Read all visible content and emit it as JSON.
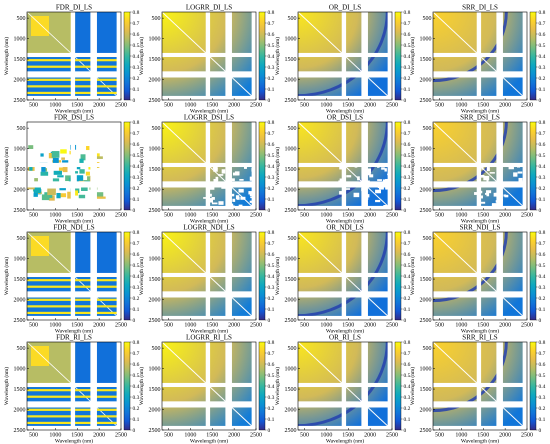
{
  "figure": {
    "rows": [
      {
        "method": "DI",
        "titles": [
          "FDR_DI_LS",
          "LOGRR_DI_LS",
          "OR_DI_LS",
          "SRR_DI_LS"
        ]
      },
      {
        "method": "DSI",
        "titles": [
          "FDR_DSI_LS",
          "LOGRR_DSI_LS",
          "OR_DSI_LS",
          "SRR_DSI_LS"
        ]
      },
      {
        "method": "NDI",
        "titles": [
          "FDR_NDI_LS",
          "LOGRR_NDI_LS",
          "OR_NDI_LS",
          "SRR_NDI_LS"
        ]
      },
      {
        "method": "RI",
        "titles": [
          "FDR_RI_LS",
          "LOGRR_RI_LS",
          "OR_RI_LS",
          "SRR_RI_LS"
        ]
      }
    ],
    "xlabel": "Wavelength (nm)",
    "ylabel": "Wavelength (nm)"
  },
  "chart_data": {
    "type": "heatmap",
    "layout": "4x4 grid",
    "x_range_nm": [
      350,
      2500
    ],
    "y_range_nm": [
      350,
      2500
    ],
    "y_axis_inverted": true,
    "x_ticks": [
      500,
      1000,
      1500,
      2000,
      2500
    ],
    "y_ticks": [
      500,
      1000,
      1500,
      2000,
      2500
    ],
    "colorbar": {
      "colormap": "viridis-like (blue to yellow)",
      "range": [
        0,
        0.8
      ],
      "ticks": [
        "0",
        "0.1",
        "0.2",
        "0.3",
        "0.4",
        "0.5",
        "0.6",
        "0.7",
        "0.8"
      ]
    },
    "masked_bands_nm": [
      [
        1350,
        1450
      ],
      [
        1800,
        1950
      ],
      [
        2400,
        2500
      ]
    ],
    "panels": [
      {
        "row": "DI",
        "metric": "FDR",
        "title": "FDR_DI_LS"
      },
      {
        "row": "DI",
        "metric": "LOGRR",
        "title": "LOGRR_DI_LS"
      },
      {
        "row": "DI",
        "metric": "OR",
        "title": "OR_DI_LS"
      },
      {
        "row": "DI",
        "metric": "SRR",
        "title": "SRR_DI_LS"
      },
      {
        "row": "DSI",
        "metric": "FDR",
        "title": "FDR_DSI_LS"
      },
      {
        "row": "DSI",
        "metric": "LOGRR",
        "title": "LOGRR_DSI_LS"
      },
      {
        "row": "DSI",
        "metric": "OR",
        "title": "OR_DSI_LS"
      },
      {
        "row": "DSI",
        "metric": "SRR",
        "title": "SRR_DSI_LS"
      },
      {
        "row": "NDI",
        "metric": "FDR",
        "title": "FDR_NDI_LS"
      },
      {
        "row": "NDI",
        "metric": "LOGRR",
        "title": "LOGRR_NDI_LS"
      },
      {
        "row": "NDI",
        "metric": "OR",
        "title": "OR_NDI_LS"
      },
      {
        "row": "NDI",
        "metric": "SRR",
        "title": "SRR_NDI_LS"
      },
      {
        "row": "RI",
        "metric": "FDR",
        "title": "FDR_RI_LS"
      },
      {
        "row": "RI",
        "metric": "LOGRR",
        "title": "LOGRR_RI_LS"
      },
      {
        "row": "RI",
        "metric": "OR",
        "title": "OR_RI_LS"
      },
      {
        "row": "RI",
        "metric": "SRR",
        "title": "SRR_RI_LS"
      }
    ]
  }
}
